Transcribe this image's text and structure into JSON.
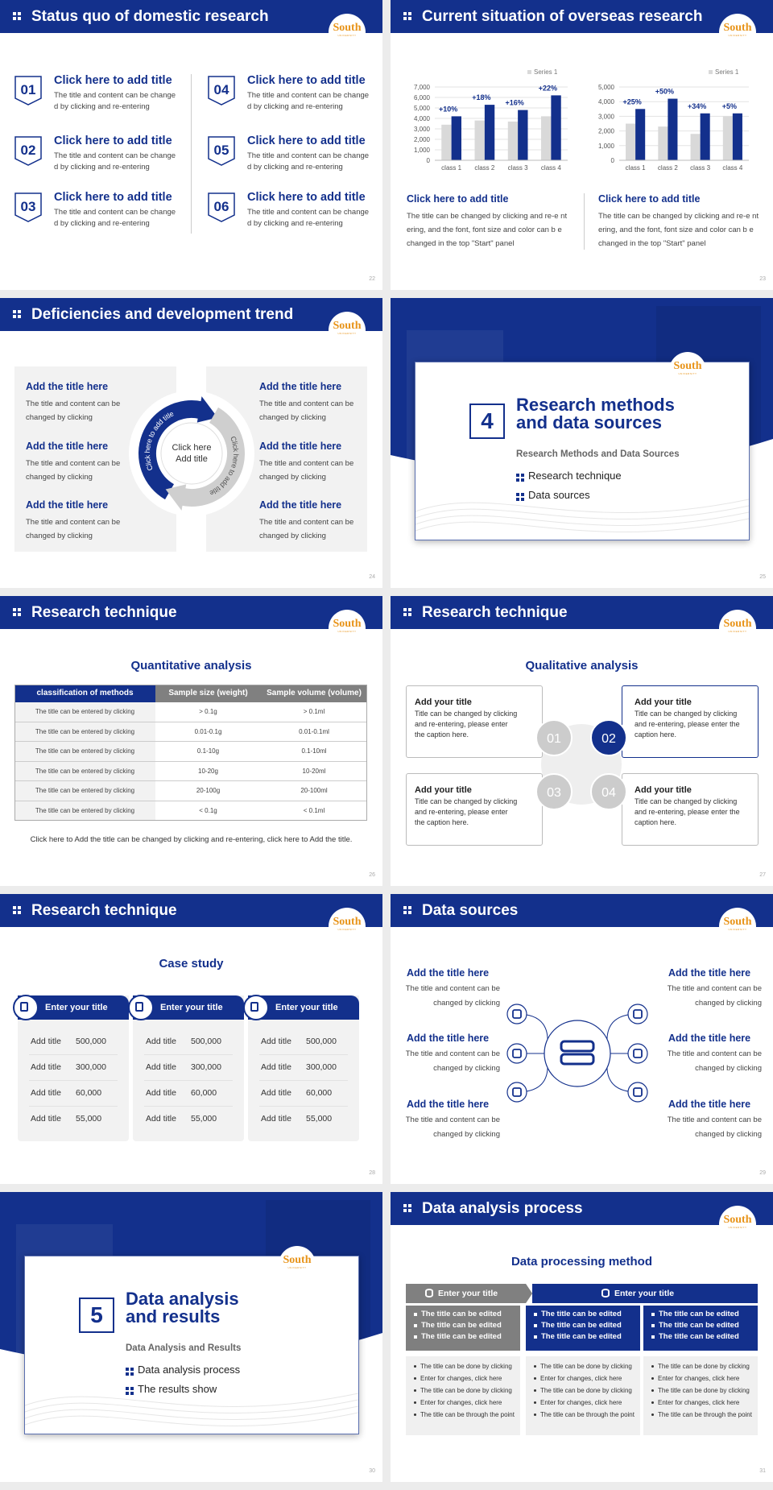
{
  "logo": {
    "name": "South",
    "sub": "UNIVERSITY"
  },
  "slides": [
    {
      "title": "Status quo of domestic research",
      "page": "22",
      "items": [
        {
          "num": "01",
          "title": "Click here to add title",
          "text": "The title and content can be change d by clicking and re-entering"
        },
        {
          "num": "02",
          "title": "Click here to add title",
          "text": "The title and content can be change d by clicking and re-entering"
        },
        {
          "num": "03",
          "title": "Click here to add title",
          "text": "The title and content can be change d by clicking and re-entering"
        },
        {
          "num": "04",
          "title": "Click here to add title",
          "text": "The title and content can be change d by clicking and re-entering"
        },
        {
          "num": "05",
          "title": "Click here to add title",
          "text": "The title and content can be change d by clicking and re-entering"
        },
        {
          "num": "06",
          "title": "Click here to add title",
          "text": "The title and content can be change d by clicking and re-entering"
        }
      ]
    },
    {
      "title": "Current situation of overseas research",
      "page": "23",
      "blocks": [
        {
          "title": "Click here to add title",
          "text": "The title can be changed by clicking and re-e ntering, and the font, font size and color can b e changed in the top \"Start\" panel"
        },
        {
          "title": "Click here to add title",
          "text": "The title can be changed by clicking and re-e ntering, and the font, font size and color can b e changed in the top \"Start\" panel"
        }
      ]
    },
    {
      "title": "Deficiencies and development trend",
      "page": "24",
      "center": "Click here Add title",
      "arcs": [
        "Click here to add title",
        "Click here to add title"
      ],
      "items": [
        {
          "title": "Add the title here",
          "text": "The title and content can be changed by clicking"
        },
        {
          "title": "Add the title here",
          "text": "The title and content can be changed by clicking"
        },
        {
          "title": "Add the title here",
          "text": "The title and content can be changed by clicking"
        },
        {
          "title": "Add the title here",
          "text": "The title and content can be changed by clicking"
        },
        {
          "title": "Add the title here",
          "text": "The title and content can be changed by clicking"
        },
        {
          "title": "Add the title here",
          "text": "The title and content can be changed by clicking"
        }
      ]
    },
    {
      "number": "4",
      "title": "Research methods and data sources",
      "subtitle": "Research Methods and Data Sources",
      "bullets": [
        "Research technique",
        "Data sources"
      ],
      "page": "25"
    },
    {
      "title": "Research technique",
      "page": "26",
      "heading": "Quantitative analysis",
      "table": {
        "header": [
          "classification of methods",
          "Sample size (weight)",
          "Sample volume (volume)"
        ],
        "rows": [
          [
            "The title can be entered by clicking",
            "> 0.1g",
            "> 0.1ml"
          ],
          [
            "The title can be entered by clicking",
            "0.01-0.1g",
            "0.01-0.1ml"
          ],
          [
            "The title can be entered by clicking",
            "0.1-10g",
            "0.1-10ml"
          ],
          [
            "The title can be entered by clicking",
            "10-20g",
            "10-20ml"
          ],
          [
            "The title can be entered by clicking",
            "20-100g",
            "20-100ml"
          ],
          [
            "The title can be entered by clicking",
            "< 0.1g",
            "< 0.1ml"
          ]
        ]
      },
      "note": "Click here to Add the title can be changed by clicking and re-entering, click here to Add the title."
    },
    {
      "title": "Research technique",
      "page": "27",
      "heading": "Qualitative analysis",
      "items": [
        {
          "num": "01",
          "title": "Add your title",
          "text": "Title can be changed by clicking and re-entering, please enter the caption here."
        },
        {
          "num": "02",
          "title": "Add your title",
          "text": "Title can be changed by clicking and re-entering, please enter the caption here."
        },
        {
          "num": "03",
          "title": "Add your title",
          "text": "Title can be changed by clicking and re-entering, please enter the caption here."
        },
        {
          "num": "04",
          "title": "Add your title",
          "text": "Title can be changed by clicking and re-entering, please enter the caption here."
        }
      ]
    },
    {
      "title": "Research technique",
      "page": "28",
      "heading": "Case study",
      "cards": [
        {
          "title": "Enter your title",
          "rows": [
            [
              "Add title",
              "500,000"
            ],
            [
              "Add title",
              "300,000"
            ],
            [
              "Add title",
              "60,000"
            ],
            [
              "Add title",
              "55,000"
            ]
          ]
        },
        {
          "title": "Enter your title",
          "rows": [
            [
              "Add title",
              "500,000"
            ],
            [
              "Add title",
              "300,000"
            ],
            [
              "Add title",
              "60,000"
            ],
            [
              "Add title",
              "55,000"
            ]
          ]
        },
        {
          "title": "Enter your title",
          "rows": [
            [
              "Add title",
              "500,000"
            ],
            [
              "Add title",
              "300,000"
            ],
            [
              "Add title",
              "60,000"
            ],
            [
              "Add title",
              "55,000"
            ]
          ]
        }
      ]
    },
    {
      "title": "Data sources",
      "page": "29",
      "items": [
        {
          "title": "Add the title here",
          "text": "The title and content can be changed by clicking"
        },
        {
          "title": "Add the title here",
          "text": "The title and content can be changed by clicking"
        },
        {
          "title": "Add the title here",
          "text": "The title and content can be changed by clicking"
        },
        {
          "title": "Add the title here",
          "text": "The title and content can be changed by clicking"
        },
        {
          "title": "Add the title here",
          "text": "The title and content can be changed by clicking"
        },
        {
          "title": "Add the title here",
          "text": "The title and content can be changed by clicking"
        }
      ]
    },
    {
      "number": "5",
      "title": "Data analysis and results",
      "subtitle": "Data Analysis and Results",
      "bullets": [
        "Data analysis process",
        "The results show"
      ],
      "page": "30"
    },
    {
      "title": "Data analysis process",
      "page": "31",
      "heading": "Data processing method",
      "headers": [
        "Enter your title",
        "Enter your title"
      ],
      "columns": [
        {
          "items": [
            "The title can be edited",
            "The title can be edited",
            "The title can be edited"
          ],
          "lines": [
            "The title can be done by clicking",
            "Enter for changes, click here",
            "The title can be done by clicking",
            "Enter for changes, click here",
            "The title can be through the point"
          ]
        },
        {
          "items": [
            "The title can be edited",
            "The title can be edited",
            "The title can be edited"
          ],
          "lines": [
            "The title can be done by clicking",
            "Enter for changes, click here",
            "The title can be done by clicking",
            "Enter for changes, click here",
            "The title can be through the point"
          ]
        },
        {
          "items": [
            "The title can be edited",
            "The title can be edited",
            "The title can be edited"
          ],
          "lines": [
            "The title can be done by clicking",
            "Enter for changes, click here",
            "The title can be done by clicking",
            "Enter for changes, click here",
            "The title can be through the point"
          ]
        }
      ]
    }
  ],
  "chart_data": [
    {
      "type": "bar",
      "categories": [
        "class 1",
        "class 2",
        "class 3",
        "class 4"
      ],
      "series": [
        {
          "name": "Series 1",
          "color": "#d9d9d9",
          "values": [
            3400,
            3800,
            3700,
            4200
          ]
        },
        {
          "color": "#13308c",
          "values": [
            4200,
            5300,
            4800,
            6200
          ]
        }
      ],
      "annotations": [
        "+10%",
        "+18%",
        "+16%",
        "+22%"
      ],
      "ylim": [
        0,
        7000
      ],
      "yticks": [
        0,
        {
          "value": 1000,
          "label": "1,000"
        },
        {
          "value": 2000,
          "label": "2,000"
        },
        {
          "value": 3000,
          "label": "3,000"
        },
        {
          "value": 4000,
          "label": "4,000"
        },
        {
          "value": 5000,
          "label": "5,000"
        },
        {
          "value": 6000,
          "label": "6,000"
        },
        {
          "value": 7000,
          "label": "7,000"
        }
      ],
      "grid": true,
      "legend": "top-right"
    },
    {
      "type": "bar",
      "categories": [
        "class 1",
        "class 2",
        "class 3",
        "class 4"
      ],
      "series": [
        {
          "name": "Series 1",
          "color": "#d9d9d9",
          "values": [
            2500,
            2300,
            1800,
            3000
          ]
        },
        {
          "color": "#13308c",
          "values": [
            3500,
            4200,
            3200,
            3200
          ]
        }
      ],
      "annotations": [
        "+25%",
        "+50%",
        "+34%",
        "+5%"
      ],
      "ylim": [
        0,
        5000
      ],
      "yticks": [
        0,
        {
          "value": 1000,
          "label": "1,000"
        },
        {
          "value": 2000,
          "label": "2,000"
        },
        {
          "value": 3000,
          "label": "3,000"
        },
        {
          "value": 4000,
          "label": "4,000"
        },
        {
          "value": 5000,
          "label": "5,000"
        }
      ],
      "grid": true,
      "legend": "top-right"
    }
  ]
}
